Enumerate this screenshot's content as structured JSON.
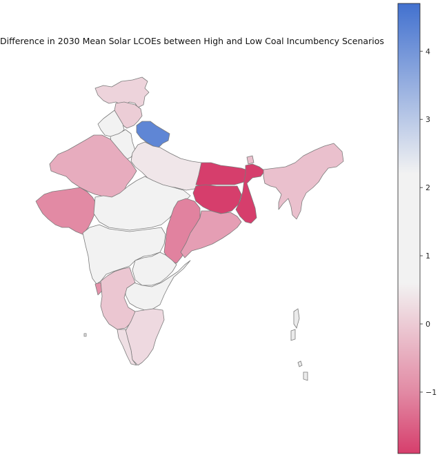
{
  "map": {
    "title": "Difference in 2030 Mean Solar LCOEs between High and Low Coal Incumbency Scenarios",
    "regions": [
      {
        "name": "Ladakh / Jammu & Kashmir",
        "value": 0.1
      },
      {
        "name": "Himachal Pradesh",
        "value": 0.0
      },
      {
        "name": "Punjab",
        "value": 1.7
      },
      {
        "name": "Haryana",
        "value": 1.7
      },
      {
        "name": "Uttarakhand",
        "value": 4.2
      },
      {
        "name": "Rajasthan",
        "value": -0.5
      },
      {
        "name": "Uttar Pradesh",
        "value": 0.4
      },
      {
        "name": "Gujarat",
        "value": -1.0
      },
      {
        "name": "Madhya Pradesh",
        "value": 1.7
      },
      {
        "name": "Bihar",
        "value": -1.9
      },
      {
        "name": "Jharkhand",
        "value": -1.9
      },
      {
        "name": "West Bengal",
        "value": -1.9
      },
      {
        "name": "Sikkim",
        "value": -0.2
      },
      {
        "name": "Chhattisgarh",
        "value": -1.1
      },
      {
        "name": "Odisha",
        "value": -0.7
      },
      {
        "name": "Maharashtra",
        "value": 1.7
      },
      {
        "name": "Telangana",
        "value": 1.7
      },
      {
        "name": "Andhra Pradesh",
        "value": 1.7
      },
      {
        "name": "Goa",
        "value": -0.9
      },
      {
        "name": "Karnataka",
        "value": -0.1
      },
      {
        "name": "Tamil Nadu",
        "value": 0.2
      },
      {
        "name": "Kerala",
        "value": 0.3
      },
      {
        "name": "Northeast states",
        "value": -0.2
      }
    ]
  },
  "colorbar": {
    "colors": {
      "min": "#d63e6c",
      "mid": "#f2f2f2",
      "max": "#4271cf"
    },
    "range": [
      -1.9,
      4.7
    ],
    "ticks": [
      {
        "value": -1,
        "label": "−1"
      },
      {
        "value": 0,
        "label": "0"
      },
      {
        "value": 1,
        "label": "1"
      },
      {
        "value": 2,
        "label": "2"
      },
      {
        "value": 3,
        "label": "3"
      },
      {
        "value": 4,
        "label": "4"
      }
    ]
  }
}
